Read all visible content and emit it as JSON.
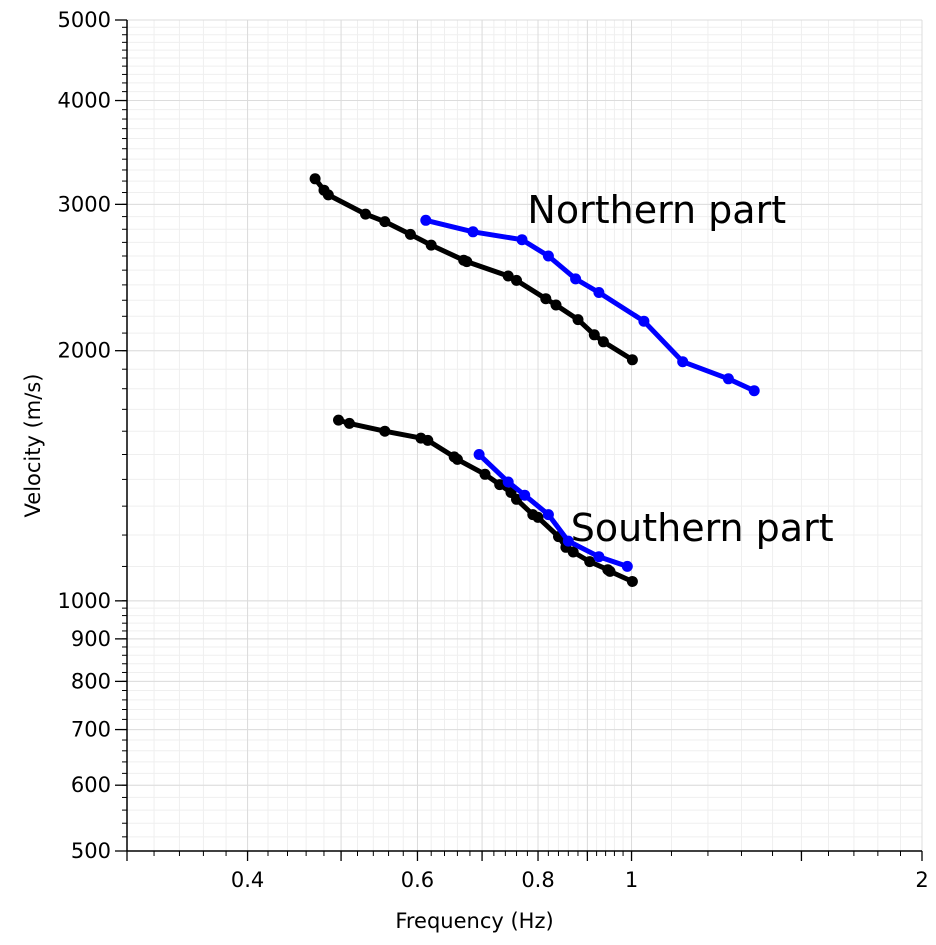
{
  "chart_data": {
    "type": "line",
    "xlabel": "Frequency (Hz)",
    "ylabel": "Velocity (m/s)",
    "xscale": "log",
    "yscale": "log",
    "xlim": [
      0.3,
      2
    ],
    "ylim": [
      500,
      5000
    ],
    "grid": true,
    "x_tick_labels": [
      "0.4",
      "0.6",
      "0.8",
      "1",
      "2"
    ],
    "x_ticks": [
      0.4,
      0.6,
      0.8,
      1,
      2
    ],
    "y_tick_labels": [
      "500",
      "600",
      "700",
      "800",
      "900",
      "1000",
      "2000",
      "3000",
      "4000",
      "5000"
    ],
    "y_ticks": [
      500,
      600,
      700,
      800,
      900,
      1000,
      2000,
      3000,
      4000,
      5000
    ],
    "annotations": [
      {
        "text": "Northern part",
        "x": 0.78,
        "y": 2850
      },
      {
        "text": "Southern part",
        "x": 0.865,
        "y": 1180
      }
    ],
    "series": [
      {
        "color": "#000000",
        "points": [
          [
            0.47,
            3220
          ],
          [
            0.48,
            3120
          ],
          [
            0.485,
            3080
          ],
          [
            0.53,
            2920
          ],
          [
            0.555,
            2860
          ],
          [
            0.59,
            2760
          ],
          [
            0.62,
            2680
          ],
          [
            0.67,
            2570
          ],
          [
            0.675,
            2560
          ],
          [
            0.745,
            2460
          ],
          [
            0.76,
            2430
          ],
          [
            0.815,
            2310
          ],
          [
            0.835,
            2270
          ],
          [
            0.88,
            2180
          ],
          [
            0.915,
            2090
          ],
          [
            0.935,
            2050
          ],
          [
            1.002,
            1950
          ]
        ]
      },
      {
        "color": "#0000ff",
        "points": [
          [
            0.612,
            2870
          ],
          [
            0.685,
            2780
          ],
          [
            0.77,
            2720
          ],
          [
            0.82,
            2600
          ],
          [
            0.875,
            2440
          ],
          [
            0.925,
            2350
          ],
          [
            1.03,
            2170
          ],
          [
            1.13,
            1940
          ],
          [
            1.26,
            1850
          ],
          [
            1.34,
            1790
          ]
        ]
      },
      {
        "color": "#000000",
        "points": [
          [
            0.497,
            1650
          ],
          [
            0.51,
            1635
          ],
          [
            0.555,
            1600
          ],
          [
            0.605,
            1570
          ],
          [
            0.615,
            1560
          ],
          [
            0.655,
            1490
          ],
          [
            0.66,
            1480
          ],
          [
            0.705,
            1420
          ],
          [
            0.73,
            1380
          ],
          [
            0.75,
            1350
          ],
          [
            0.76,
            1325
          ],
          [
            0.79,
            1270
          ],
          [
            0.8,
            1260
          ],
          [
            0.84,
            1195
          ],
          [
            0.855,
            1160
          ],
          [
            0.87,
            1145
          ],
          [
            0.905,
            1115
          ],
          [
            0.945,
            1090
          ],
          [
            0.95,
            1085
          ],
          [
            1.002,
            1055
          ]
        ]
      },
      {
        "color": "#0000ff",
        "points": [
          [
            0.695,
            1500
          ],
          [
            0.745,
            1390
          ],
          [
            0.775,
            1340
          ],
          [
            0.82,
            1270
          ],
          [
            0.86,
            1180
          ],
          [
            0.925,
            1130
          ],
          [
            0.99,
            1100
          ]
        ]
      }
    ]
  }
}
